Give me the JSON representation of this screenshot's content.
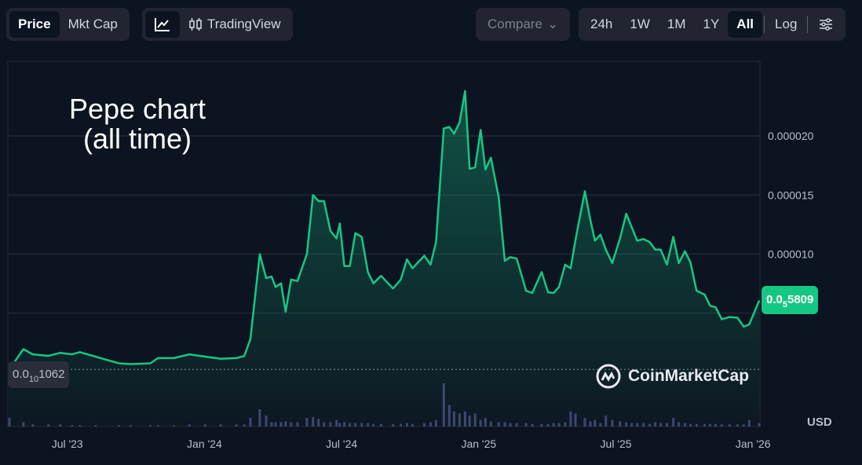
{
  "toolbar": {
    "price": "Price",
    "mkt_cap": "Mkt Cap",
    "line_icon": "line-chart-icon",
    "tradingview": "TradingView",
    "compare": "Compare",
    "ranges": [
      "24h",
      "1W",
      "1M",
      "1Y",
      "All"
    ],
    "log": "Log",
    "selected_range": "All"
  },
  "annotation": {
    "line1": "Pepe chart",
    "line2": "(all time)"
  },
  "current_price": {
    "prefix": "0.0",
    "zeros": "5",
    "digits": "5809"
  },
  "low_price": {
    "prefix": "0.0",
    "zeros": "10",
    "digits": "1062"
  },
  "watermark": "CoinMarketCap",
  "currency": "USD",
  "colors": {
    "line": "#16c784",
    "bg": "#0d1421"
  },
  "chart_data": {
    "type": "area",
    "title": "Pepe chart (all time)",
    "x_unit": "months since Jan 2023",
    "y_unit": "USD (x1e-6)",
    "xlim": [
      3.4,
      36.3
    ],
    "ylim": [
      0,
      25
    ],
    "y_ticks": [
      {
        "v": 20,
        "label": "0.000020"
      },
      {
        "v": 15,
        "label": "0.000015"
      },
      {
        "v": 10,
        "label": "0.000010"
      },
      {
        "v": 5,
        "label": ""
      }
    ],
    "x_ticks": [
      {
        "m": 6,
        "label": "Jul '23"
      },
      {
        "m": 12,
        "label": "Jan '24"
      },
      {
        "m": 18,
        "label": "Jul '24"
      },
      {
        "m": 24,
        "label": "Jan '25"
      },
      {
        "m": 30,
        "label": "Jul '25"
      },
      {
        "m": 36,
        "label": "Jan '26"
      }
    ],
    "grid": true,
    "x": [
      3.47,
      4.08,
      4.49,
      5.18,
      5.69,
      6.21,
      6.55,
      7.23,
      8.26,
      8.77,
      9.63,
      9.97,
      10.66,
      11.34,
      12.03,
      12.71,
      13.4,
      13.74,
      14.01,
      14.42,
      14.7,
      14.94,
      15.11,
      15.35,
      15.55,
      15.79,
      16.07,
      16.48,
      16.75,
      16.99,
      17.23,
      17.51,
      17.78,
      17.92,
      18.12,
      18.36,
      18.6,
      18.88,
      19.15,
      19.39,
      19.73,
      20.25,
      20.59,
      20.86,
      21.1,
      21.62,
      21.89,
      22.13,
      22.47,
      22.71,
      22.92,
      23.16,
      23.4,
      23.6,
      23.84,
      24.08,
      24.29,
      24.53,
      24.87,
      25.14,
      25.38,
      25.66,
      26.07,
      26.34,
      26.75,
      27.03,
      27.27,
      27.51,
      27.78,
      28.02,
      28.23,
      28.64,
      28.88,
      29.08,
      29.32,
      29.56,
      29.84,
      30.18,
      30.45,
      30.69,
      30.93,
      31.21,
      31.48,
      31.72,
      31.96,
      32.23,
      32.51,
      32.75,
      33.02,
      33.26,
      33.53,
      33.88,
      34.12,
      34.36,
      34.63,
      34.97,
      35.32,
      35.59,
      35.83,
      36.27
    ],
    "values": [
      0.25,
      1.96,
      1.52,
      1.39,
      1.65,
      1.52,
      1.71,
      1.33,
      0.76,
      0.7,
      0.76,
      1.2,
      1.2,
      1.52,
      1.33,
      1.14,
      1.2,
      1.39,
      2.78,
      10.0,
      7.97,
      8.1,
      7.22,
      7.53,
      5.13,
      7.85,
      7.72,
      10.0,
      15.0,
      14.49,
      14.49,
      11.96,
      11.33,
      12.59,
      8.99,
      8.99,
      11.77,
      11.46,
      8.48,
      7.53,
      8.16,
      7.09,
      7.85,
      9.56,
      8.8,
      9.87,
      9.11,
      11.01,
      20.63,
      20.76,
      20.19,
      21.14,
      23.8,
      17.22,
      17.34,
      20.51,
      17.15,
      18.16,
      14.81,
      9.43,
      9.75,
      9.62,
      6.9,
      6.71,
      8.48,
      6.77,
      6.71,
      7.22,
      9.11,
      8.8,
      11.2,
      15.32,
      12.91,
      11.14,
      11.65,
      10.38,
      9.24,
      11.33,
      13.42,
      12.28,
      11.14,
      11.27,
      11.01,
      10.38,
      10.38,
      9.11,
      11.46,
      9.24,
      10.25,
      9.3,
      6.9,
      6.58,
      5.63,
      5.51,
      4.49,
      4.68,
      4.62,
      3.86,
      4.05,
      6.08
    ],
    "volume_relative": [
      0.2,
      0.1,
      0.05,
      0.05,
      0.05,
      0.03,
      0.03,
      0.03,
      0.03,
      0.03,
      0.03,
      0.03,
      0.03,
      0.05,
      0.05,
      0.05,
      0.05,
      0.05,
      0.2,
      0.4,
      0.25,
      0.1,
      0.1,
      0.1,
      0.12,
      0.1,
      0.1,
      0.2,
      0.22,
      0.18,
      0.1,
      0.1,
      0.15,
      0.08,
      0.1,
      0.08,
      0.08,
      0.08,
      0.08,
      0.06,
      0.06,
      0.06,
      0.06,
      0.08,
      0.06,
      0.08,
      0.1,
      0.15,
      1.0,
      0.5,
      0.35,
      0.3,
      0.35,
      0.25,
      0.3,
      0.15,
      0.2,
      0.12,
      0.1,
      0.1,
      0.08,
      0.08,
      0.08,
      0.06,
      0.06,
      0.06,
      0.08,
      0.08,
      0.1,
      0.35,
      0.3,
      0.2,
      0.12,
      0.15,
      0.08,
      0.25,
      0.15,
      0.12,
      0.1,
      0.08,
      0.08,
      0.08,
      0.06,
      0.1,
      0.08,
      0.08,
      0.2,
      0.1,
      0.08,
      0.06,
      0.06,
      0.06,
      0.06,
      0.06,
      0.05,
      0.05,
      0.05,
      0.05,
      0.15,
      0.08
    ]
  }
}
